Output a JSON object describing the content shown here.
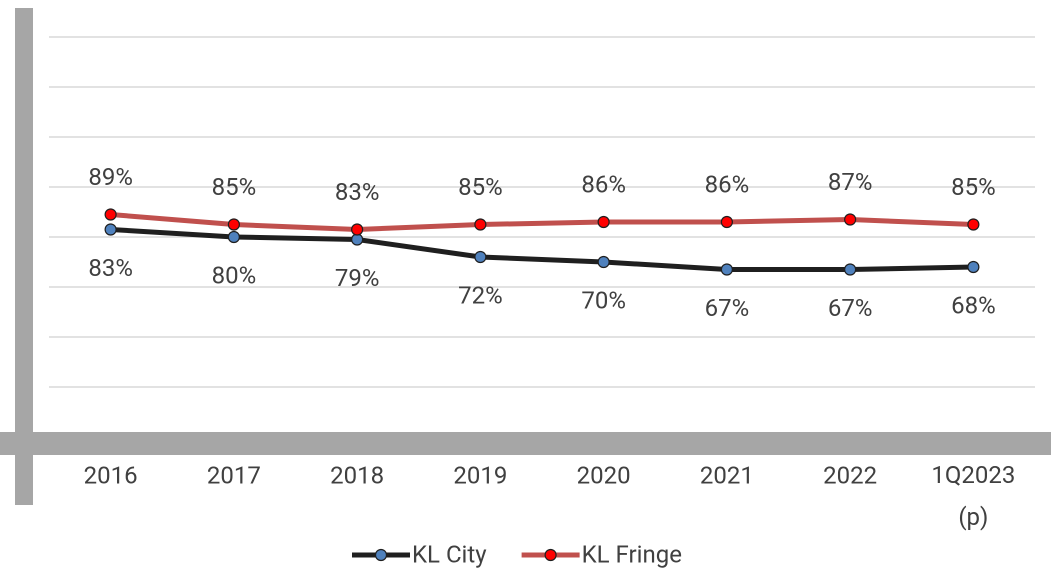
{
  "chart_data": {
    "type": "line",
    "categories": [
      "2016",
      "2017",
      "2018",
      "2019",
      "2020",
      "2021",
      "2022",
      "1Q2023 (p)"
    ],
    "series": [
      {
        "name": "KL City",
        "color": "#1f1f1f",
        "marker_color": "#4f81bd",
        "values": [
          83,
          80,
          79,
          72,
          70,
          67,
          67,
          68
        ],
        "value_labels": [
          "83%",
          "80%",
          "79%",
          "72%",
          "70%",
          "67%",
          "67%",
          "68%"
        ]
      },
      {
        "name": "KL Fringe",
        "color": "#c0504d",
        "marker_color": "#ff0000",
        "values": [
          89,
          85,
          83,
          85,
          86,
          86,
          87,
          85
        ],
        "value_labels": [
          "89%",
          "85%",
          "83%",
          "85%",
          "86%",
          "86%",
          "87%",
          "85%"
        ]
      }
    ],
    "ylim": [
      0,
      160
    ],
    "yticks": [
      0,
      20,
      40,
      60,
      80,
      100,
      120,
      140,
      160
    ],
    "grid": true,
    "legend": "bottom"
  }
}
